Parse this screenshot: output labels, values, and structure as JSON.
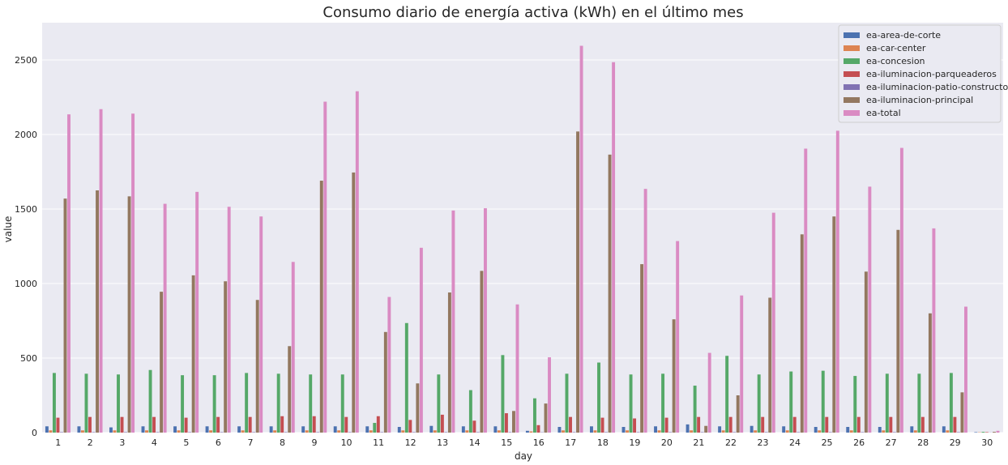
{
  "chart_data": {
    "type": "bar",
    "title": "Consumo diario de energía activa (kWh) en el último mes",
    "xlabel": "day",
    "ylabel": "value",
    "ylim": [
      0,
      2750
    ],
    "yticks": [
      0,
      500,
      1000,
      1500,
      2000,
      2500
    ],
    "grid": true,
    "legend_position": "top-right",
    "background": "#eaeaf2",
    "categories": [
      "1",
      "2",
      "3",
      "4",
      "5",
      "6",
      "7",
      "8",
      "9",
      "10",
      "11",
      "12",
      "13",
      "14",
      "15",
      "16",
      "17",
      "18",
      "19",
      "20",
      "21",
      "22",
      "23",
      "24",
      "25",
      "26",
      "27",
      "28",
      "29",
      "30"
    ],
    "series": [
      {
        "name": "ea-area-de-corte",
        "color": "#4c72b0",
        "values": [
          42,
          42,
          35,
          42,
          42,
          42,
          42,
          42,
          42,
          42,
          42,
          38,
          45,
          42,
          42,
          12,
          38,
          42,
          38,
          42,
          55,
          42,
          45,
          42,
          38,
          38,
          38,
          42,
          42,
          3
        ]
      },
      {
        "name": "ea-car-center",
        "color": "#dd8452",
        "values": [
          15,
          15,
          15,
          15,
          15,
          15,
          15,
          15,
          15,
          15,
          15,
          15,
          15,
          15,
          15,
          8,
          15,
          15,
          15,
          15,
          15,
          15,
          15,
          15,
          15,
          15,
          15,
          15,
          15,
          2
        ]
      },
      {
        "name": "ea-concesion",
        "color": "#55a868",
        "values": [
          400,
          395,
          390,
          420,
          385,
          385,
          400,
          395,
          390,
          390,
          65,
          735,
          390,
          285,
          520,
          230,
          395,
          470,
          390,
          395,
          315,
          515,
          390,
          410,
          415,
          380,
          395,
          395,
          400,
          5
        ]
      },
      {
        "name": "ea-iluminacion-parqueaderos",
        "color": "#c44e52",
        "values": [
          100,
          105,
          105,
          105,
          100,
          105,
          105,
          110,
          110,
          105,
          110,
          85,
          120,
          80,
          130,
          50,
          105,
          100,
          95,
          100,
          105,
          105,
          105,
          105,
          105,
          105,
          105,
          105,
          105,
          3
        ]
      },
      {
        "name": "ea-iluminacion-patio-constructor",
        "color": "#8172b3",
        "values": [
          3,
          3,
          3,
          3,
          3,
          3,
          3,
          3,
          3,
          3,
          3,
          3,
          3,
          3,
          3,
          2,
          3,
          3,
          3,
          3,
          3,
          3,
          3,
          3,
          3,
          3,
          3,
          3,
          3,
          1
        ]
      },
      {
        "name": "ea-iluminacion-principal",
        "color": "#937860",
        "values": [
          1570,
          1625,
          1585,
          945,
          1055,
          1015,
          890,
          580,
          1690,
          1745,
          675,
          330,
          940,
          1085,
          145,
          195,
          2020,
          1865,
          1130,
          760,
          45,
          250,
          905,
          1330,
          1450,
          1080,
          1360,
          800,
          270,
          5
        ]
      },
      {
        "name": "ea-total",
        "color": "#da8bc3",
        "values": [
          2135,
          2170,
          2140,
          1535,
          1615,
          1515,
          1450,
          1145,
          2220,
          2290,
          910,
          1240,
          1490,
          1505,
          860,
          505,
          2595,
          2485,
          1635,
          1285,
          535,
          920,
          1475,
          1905,
          2025,
          1650,
          1910,
          1370,
          845,
          12
        ]
      }
    ]
  }
}
